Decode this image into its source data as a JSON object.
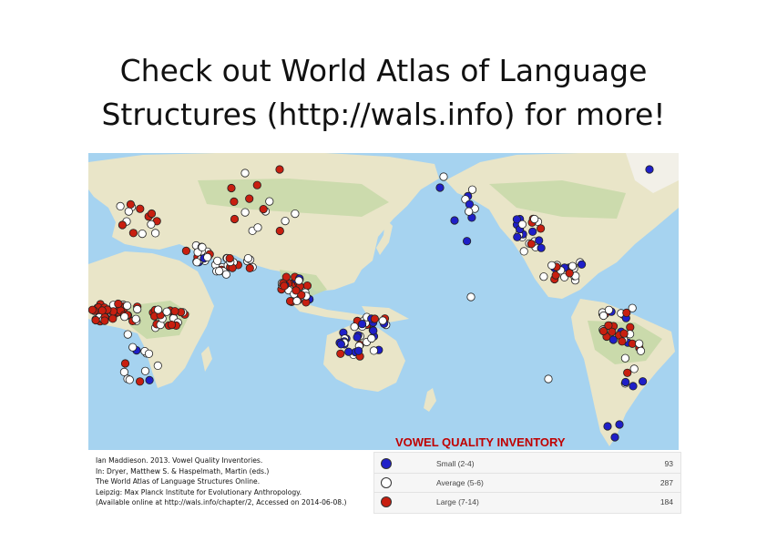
{
  "title": {
    "line1": "Check out World Atlas of Language",
    "line2": "Structures (http://wals.info) for more!"
  },
  "map": {
    "label": "VOWEL QUALITY INVENTORY",
    "ocean_color": "#a6d3f0",
    "land_color": "#e9e5c8",
    "forest_color": "#c4d8a6"
  },
  "citation": [
    "Ian Maddieson. 2013. Vowel Quality Inventories.",
    "In: Dryer, Matthew S. & Haspelmath, Martin (eds.)",
    "The World Atlas of Language Structures Online.",
    "Leipzig: Max Planck Institute for Evolutionary Anthropology.",
    "(Available online at http://wals.info/chapter/2, Accessed on 2014-06-08.)"
  ],
  "legend": [
    {
      "label": "Small (2-4)",
      "count": "93",
      "color": "#1f1fc8"
    },
    {
      "label": "Average (5-6)",
      "count": "287",
      "color": "#ffffff"
    },
    {
      "label": "Large (7-14)",
      "count": "184",
      "color": "#c81f10"
    }
  ]
}
